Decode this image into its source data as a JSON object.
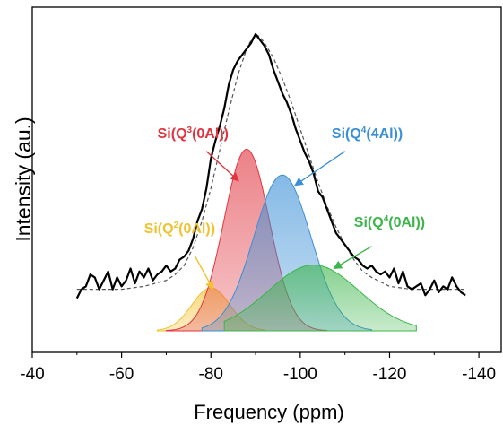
{
  "chart_data": {
    "type": "area",
    "xlabel": "Frequency (ppm)",
    "ylabel": "Intensity (au.)",
    "x_ticks": [
      -40,
      -60,
      -80,
      -100,
      -120,
      -140
    ],
    "xlim": [
      -40,
      -145
    ],
    "grid": false,
    "legend": "none",
    "series": [
      {
        "kind": "experimental",
        "color": "#000000",
        "x": [
          -50,
          -51,
          -52,
          -53,
          -54,
          -55,
          -56,
          -57,
          -58,
          -59,
          -60,
          -61,
          -62,
          -63,
          -64,
          -65,
          -66,
          -67,
          -68,
          -69,
          -70,
          -71,
          -72,
          -73,
          -74,
          -75,
          -76,
          -77,
          -78,
          -79,
          -80,
          -81,
          -82,
          -83,
          -84,
          -85,
          -86,
          -87,
          -88,
          -89,
          -90,
          -91,
          -92,
          -93,
          -94,
          -95,
          -96,
          -97,
          -98,
          -99,
          -100,
          -101,
          -102,
          -103,
          -104,
          -105,
          -106,
          -107,
          -108,
          -109,
          -110,
          -111,
          -112,
          -113,
          -114,
          -115,
          -116,
          -117,
          -118,
          -119,
          -120,
          -121,
          -122,
          -123,
          -124,
          -125,
          -126,
          -127,
          -128,
          -129,
          -130,
          -131,
          -132,
          -133,
          -134,
          -135,
          -136,
          -137
        ],
        "y": [
          0.11,
          0.14,
          0.15,
          0.19,
          0.18,
          0.14,
          0.17,
          0.2,
          0.14,
          0.18,
          0.15,
          0.17,
          0.21,
          0.16,
          0.2,
          0.18,
          0.21,
          0.17,
          0.19,
          0.2,
          0.22,
          0.2,
          0.21,
          0.24,
          0.25,
          0.27,
          0.31,
          0.37,
          0.41,
          0.48,
          0.58,
          0.64,
          0.69,
          0.75,
          0.83,
          0.88,
          0.91,
          0.93,
          0.95,
          0.97,
          1.0,
          0.98,
          0.96,
          0.93,
          0.88,
          0.84,
          0.8,
          0.77,
          0.73,
          0.68,
          0.64,
          0.6,
          0.57,
          0.53,
          0.47,
          0.45,
          0.41,
          0.37,
          0.33,
          0.31,
          0.29,
          0.27,
          0.25,
          0.24,
          0.22,
          0.21,
          0.22,
          0.2,
          0.19,
          0.2,
          0.18,
          0.21,
          0.16,
          0.2,
          0.15,
          0.14,
          0.15,
          0.16,
          0.12,
          0.14,
          0.17,
          0.13,
          0.15,
          0.14,
          0.18,
          0.15,
          0.13,
          0.12
        ]
      },
      {
        "kind": "fit",
        "color": "#555555",
        "dash": true,
        "x": [
          -50,
          -55,
          -60,
          -65,
          -70,
          -72,
          -74,
          -76,
          -78,
          -80,
          -82,
          -84,
          -86,
          -88,
          -89,
          -90,
          -91,
          -92,
          -94,
          -96,
          -98,
          -100,
          -102,
          -104,
          -106,
          -108,
          -110,
          -112,
          -114,
          -116,
          -120,
          -125,
          -130,
          -137
        ],
        "y": [
          0.14,
          0.14,
          0.14,
          0.15,
          0.17,
          0.19,
          0.22,
          0.28,
          0.37,
          0.48,
          0.61,
          0.74,
          0.86,
          0.95,
          0.98,
          1.0,
          0.99,
          0.97,
          0.92,
          0.85,
          0.77,
          0.68,
          0.59,
          0.5,
          0.42,
          0.35,
          0.29,
          0.24,
          0.2,
          0.18,
          0.15,
          0.14,
          0.14,
          0.14
        ]
      },
      {
        "name": "Si(Q²(0Al))",
        "color": "#f2c12e",
        "center": -80,
        "amplitude": 0.145,
        "fwhm": 10,
        "range": [
          -68,
          -92
        ]
      },
      {
        "name": "Si(Q³(0Al))",
        "color": "#e0353f",
        "center": -88,
        "amplitude": 0.612,
        "fwhm": 12,
        "range": [
          -70,
          -106
        ]
      },
      {
        "name": "Si(Q⁴(4Al))",
        "color": "#3a8fd6",
        "center": -96,
        "amplitude": 0.525,
        "fwhm": 15,
        "range": [
          -78,
          -116
        ]
      },
      {
        "name": "Si(Q⁴(0Al))",
        "color": "#3cb54a",
        "center": -103,
        "amplitude": 0.222,
        "fwhm": 24,
        "range": [
          -83,
          -126
        ]
      }
    ],
    "annotations": [
      {
        "text": "Si(Q²(0Al))",
        "base": "Si(Q",
        "sup": "2",
        "rest": "(0Al))",
        "color": "#f2c12e",
        "label_x": -73,
        "label_y": 0.33,
        "arrow_from": [
          -76.5,
          0.25
        ],
        "arrow_to": [
          -80.5,
          0.14
        ]
      },
      {
        "text": "Si(Q³(0Al))",
        "base": "Si(Q",
        "sup": "3",
        "rest": "(0Al))",
        "color": "#e0353f",
        "label_x": -76,
        "label_y": 0.65,
        "arrow_from": [
          -79,
          0.605
        ],
        "arrow_to": [
          -86.2,
          0.505
        ]
      },
      {
        "text": "Si(Q⁴(4Al))",
        "base": "Si(Q",
        "sup": "4",
        "rest": "(4Al))",
        "color": "#3a8fd6",
        "label_x": -115,
        "label_y": 0.65,
        "arrow_from": [
          -110,
          0.605
        ],
        "arrow_to": [
          -98.8,
          0.49
        ]
      },
      {
        "text": "Si(Q⁴(0Al))",
        "base": "Si(Q",
        "sup": "4",
        "rest": "(0Al))",
        "color": "#3cb54a",
        "label_x": -120,
        "label_y": 0.35,
        "arrow_from": [
          -116,
          0.285
        ],
        "arrow_to": [
          -107.5,
          0.21
        ]
      }
    ]
  }
}
